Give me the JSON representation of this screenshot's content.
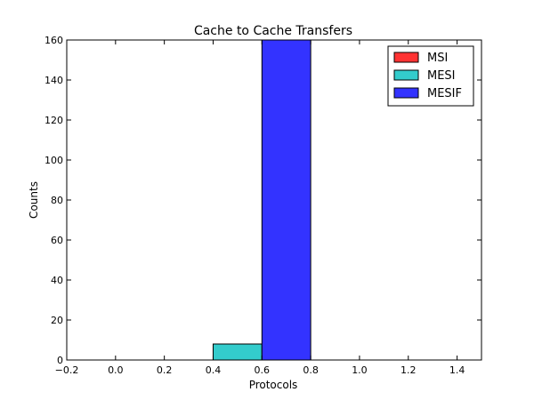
{
  "chart_data": {
    "type": "bar",
    "title": "Cache to Cache Transfers",
    "xlabel": "Protocols",
    "ylabel": "Counts",
    "xlim": [
      -0.2,
      1.5
    ],
    "ylim": [
      0,
      160
    ],
    "xticks": [
      "−0.2",
      "0.0",
      "0.2",
      "0.4",
      "0.6",
      "0.8",
      "1.0",
      "1.2",
      "1.4"
    ],
    "xtick_values": [
      -0.2,
      0.0,
      0.2,
      0.4,
      0.6,
      0.8,
      1.0,
      1.2,
      1.4
    ],
    "yticks": [
      "0",
      "20",
      "40",
      "60",
      "80",
      "100",
      "120",
      "140",
      "160"
    ],
    "ytick_values": [
      0,
      20,
      40,
      60,
      80,
      100,
      120,
      140,
      160
    ],
    "grid": false,
    "legend_placement": "top-right",
    "series": [
      {
        "name": "MSI",
        "color": "#ff3333",
        "x_start": 0.2,
        "x_end": 0.4,
        "value": 0
      },
      {
        "name": "MESI",
        "color": "#33cccc",
        "x_start": 0.4,
        "x_end": 0.6,
        "value": 8
      },
      {
        "name": "MESIF",
        "color": "#3333ff",
        "x_start": 0.6,
        "x_end": 0.8,
        "value": 160
      }
    ]
  }
}
